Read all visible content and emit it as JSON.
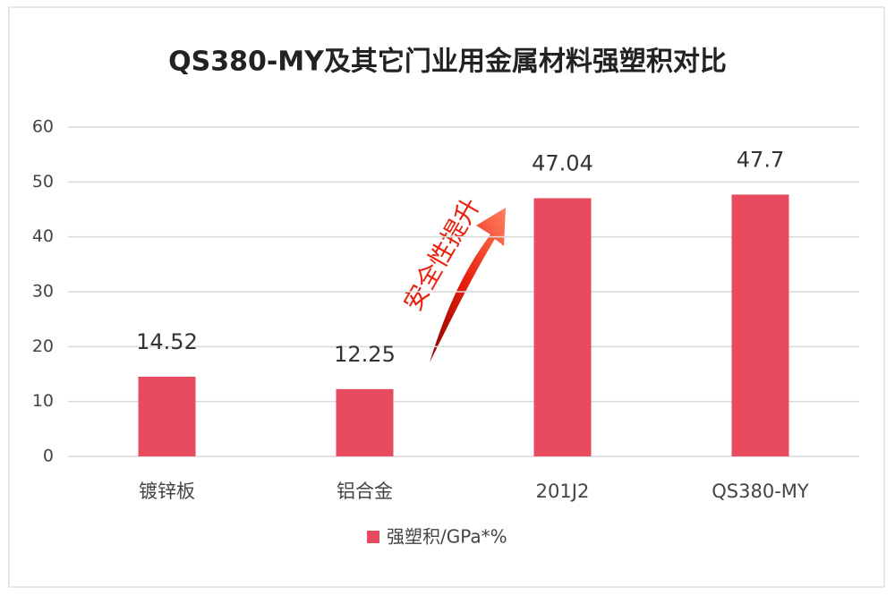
{
  "chart_data": {
    "type": "bar",
    "title": "QS380-MY及其它门业用金属材料强塑积对比",
    "categories": [
      "镀锌板",
      "铝合金",
      "201J2",
      "QS380-MY"
    ],
    "series": [
      {
        "name": "强塑积/GPa*%",
        "color": "#e84a5f",
        "values": [
          14.52,
          12.25,
          47.04,
          47.7
        ]
      }
    ],
    "ylim": [
      0,
      60
    ],
    "yticks": [
      0,
      10,
      20,
      30,
      40,
      50,
      60
    ],
    "grid": true,
    "legend": "bottom",
    "annotation": "安全性提升"
  }
}
